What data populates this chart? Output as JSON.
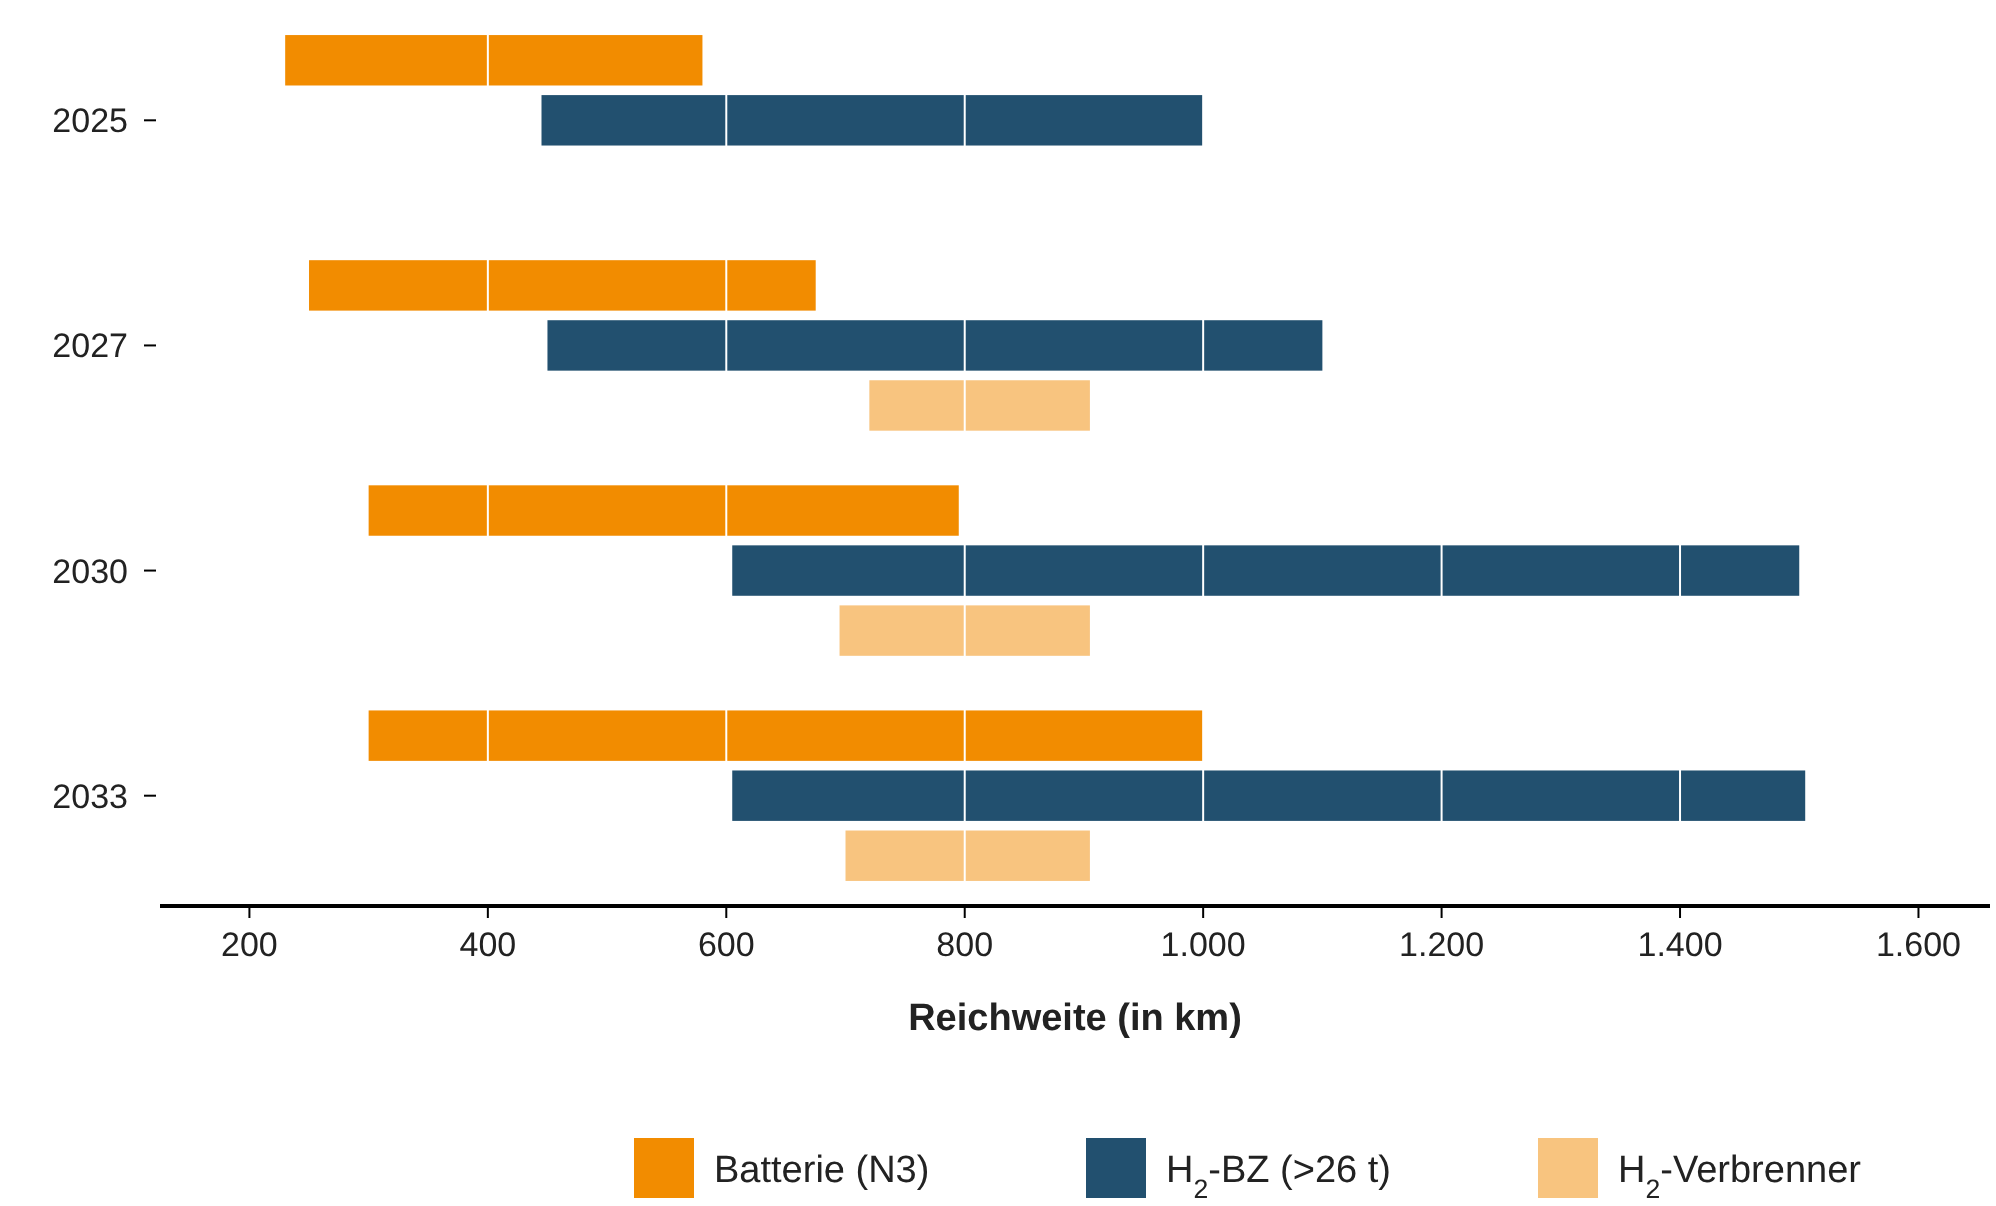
{
  "chart_data": {
    "type": "bar",
    "orientation": "horizontal",
    "xlabel": "Reichweite (in km)",
    "categories": [
      "2025",
      "2027",
      "2030",
      "2033"
    ],
    "series": [
      {
        "name": "Batterie (N3)",
        "color": "#f28c00",
        "base": [
          230,
          250,
          300,
          300
        ],
        "values": [
          350,
          425,
          495,
          700
        ]
      },
      {
        "name": "H$_{2}$-BZ (>26 t)",
        "color": "#22506f",
        "base": [
          445,
          450,
          605,
          605
        ],
        "values": [
          555,
          650,
          895,
          900
        ]
      },
      {
        "name": "H$_{2}$-Verbrenner",
        "color": "#f8c47f",
        "base": [
          null,
          720,
          695,
          700
        ],
        "values": [
          null,
          185,
          210,
          205
        ]
      }
    ],
    "xlim": [
      125,
      1660
    ],
    "xticks": [
      200,
      400,
      600,
      800,
      {
        "value": 1000,
        "label": "1.000"
      },
      {
        "value": 1200,
        "label": "1.200"
      },
      {
        "value": 1400,
        "label": "1.400"
      },
      {
        "value": 1600,
        "label": "1.600"
      }
    ],
    "grid": "x",
    "legend": "bottom right"
  }
}
